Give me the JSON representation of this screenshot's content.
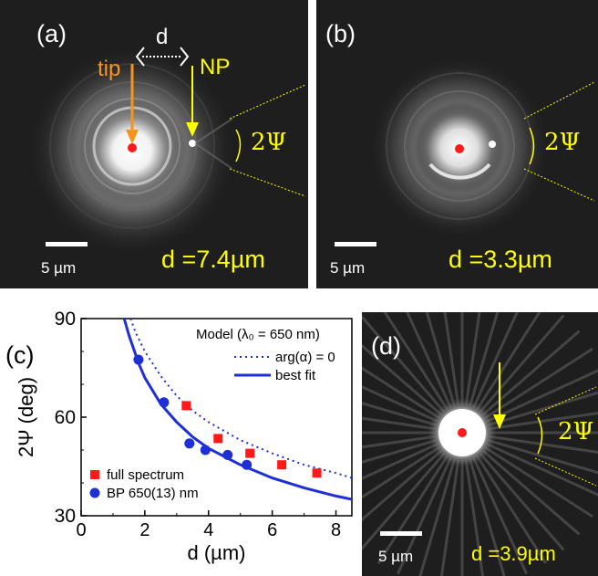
{
  "colors": {
    "yellow": "#ffff00",
    "orange": "#f7941d",
    "red": "#ff1a1a",
    "blue": "#1f2fd6",
    "dark": "#1e1e1e"
  },
  "panel_a": {
    "label": "(a)",
    "tip_label": "tip",
    "np_label": "NP",
    "d_symbol": "d",
    "angle_label": "2Ψ",
    "scale_label": "5 µm",
    "distance_label": "d =7.4µm"
  },
  "panel_b": {
    "label": "(b)",
    "angle_label": "2Ψ",
    "scale_label": "5 µm",
    "distance_label": "d =3.3µm"
  },
  "panel_d": {
    "label": "(d)",
    "angle_label": "2Ψ",
    "scale_label": "5 µm",
    "distance_label": "d =3.9µm"
  },
  "chart_data": {
    "type": "scatter",
    "panel_label": "(c)",
    "xlabel": "d (µm)",
    "ylabel": "2Ψ (deg)",
    "xlim": [
      0,
      8.5
    ],
    "ylim": [
      30,
      90
    ],
    "xticks": [
      0,
      2,
      4,
      6,
      8
    ],
    "yticks": [
      30,
      60,
      90
    ],
    "legend_header": "Model (λ₀ = 650 nm)",
    "series": [
      {
        "name": "full spectrum",
        "kind": "square",
        "color": "#ff1a1a",
        "x": [
          3.3,
          4.3,
          5.3,
          6.3,
          7.4
        ],
        "y": [
          63.5,
          53.5,
          49,
          45.5,
          43
        ]
      },
      {
        "name": "BP 650(13) nm",
        "kind": "circle",
        "color": "#1f2fd6",
        "x": [
          1.8,
          2.6,
          3.4,
          3.9,
          4.6,
          5.2
        ],
        "y": [
          77.5,
          64.5,
          52,
          50,
          48.5,
          45.5
        ]
      }
    ],
    "curves": [
      {
        "name": "arg(α) = 0",
        "style": "dotted",
        "color": "#1f2fd6",
        "x": [
          1.55,
          1.7,
          2,
          2.5,
          3,
          3.5,
          4,
          5,
          6,
          7,
          8,
          8.5
        ],
        "y": [
          90,
          86,
          80,
          72.5,
          66.5,
          62,
          58.5,
          53,
          49,
          45.5,
          43,
          41.5
        ]
      },
      {
        "name": "best fit",
        "style": "solid",
        "color": "#1f2fd6",
        "x": [
          1.35,
          1.5,
          1.8,
          2,
          2.5,
          3,
          3.5,
          4,
          5,
          6,
          7,
          8,
          8.5
        ],
        "y": [
          90,
          85,
          76.5,
          72,
          64,
          58.5,
          54,
          50.5,
          45.5,
          41.5,
          38.5,
          36,
          35
        ]
      }
    ]
  }
}
